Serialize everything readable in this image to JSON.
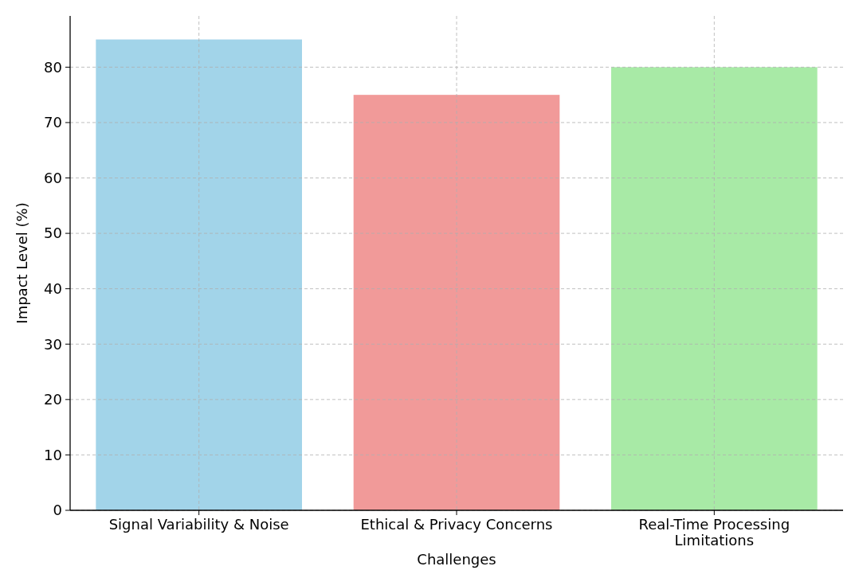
{
  "chart_data": {
    "type": "bar",
    "xlabel": "Challenges",
    "ylabel": "Impact Level (%)",
    "categories": [
      "Signal Variability & Noise",
      "Ethical & Privacy Concerns",
      "Real-Time Processing Limitations"
    ],
    "values": [
      85,
      75,
      80
    ],
    "colors": [
      "#a2d4e9",
      "#f19a99",
      "#a8eaa6"
    ],
    "ylim": [
      0,
      89.25
    ],
    "yticks": [
      0,
      10,
      20,
      30,
      40,
      50,
      60,
      70,
      80
    ],
    "grid": true
  }
}
